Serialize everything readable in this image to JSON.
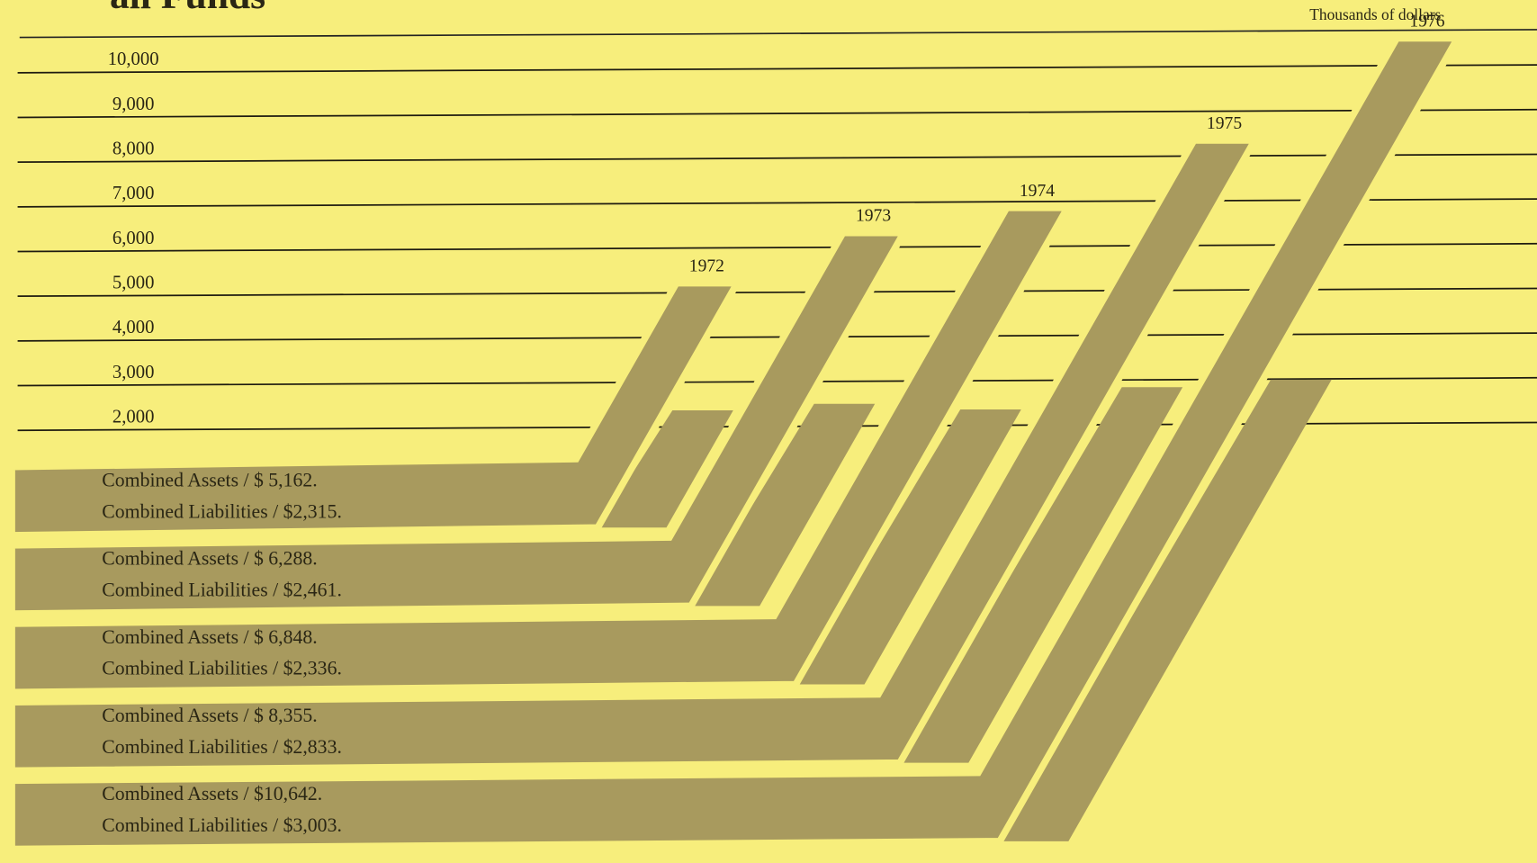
{
  "chart_data": {
    "type": "ribbon",
    "title": "all Funds",
    "y_label": "Thousands of dollars",
    "categories": [
      "1972",
      "1973",
      "1974",
      "1975",
      "1976"
    ],
    "ylim": [
      1000,
      11000
    ],
    "yticks": [
      {
        "value": 2000,
        "label": "2,000"
      },
      {
        "value": 3000,
        "label": "3,000"
      },
      {
        "value": 4000,
        "label": "4,000"
      },
      {
        "value": 5000,
        "label": "5,000"
      },
      {
        "value": 6000,
        "label": "6,000"
      },
      {
        "value": 7000,
        "label": "7,000"
      },
      {
        "value": 8000,
        "label": "8,000"
      },
      {
        "value": 9000,
        "label": "9,000"
      },
      {
        "value": 10000,
        "label": "10,000"
      }
    ],
    "grid": true,
    "series": [
      {
        "color": "#a89a5e",
        "values": [
          5162,
          6288,
          6848,
          8355,
          10642
        ],
        "value_labels": [
          "Combined Assets / $ 5,162.",
          "Combined Assets / $ 6,288.",
          "Combined Assets / $ 6,848.",
          "Combined Assets / $ 8,355.",
          "Combined Assets / $10,642."
        ]
      },
      {
        "color": "#a89a5e",
        "values": [
          2315,
          2461,
          2336,
          2833,
          3003
        ],
        "value_labels": [
          "Combined Liabilities / $2,315.",
          "Combined Liabilities / $2,461.",
          "Combined Liabilities / $2,336.",
          "Combined Liabilities / $2,833.",
          "Combined Liabilities / $3,003."
        ]
      }
    ]
  }
}
